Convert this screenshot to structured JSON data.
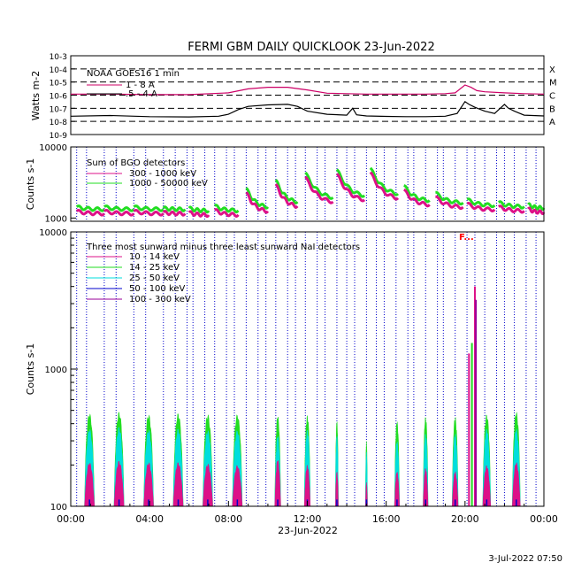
{
  "title": "FERMI GBM DAILY QUICKLOOK  23-Jun-2022",
  "footer_timestamp": "3-Jul-2022 07:50",
  "x_axis": {
    "ticks": [
      "00:00",
      "04:00",
      "08:00",
      "12:00",
      "16:00",
      "20:00",
      "00:00"
    ],
    "label": "23-Jun-2022"
  },
  "colors": {
    "goes_long": "#cc0066",
    "goes_short": "#000000",
    "bgo_low": "#dd1188",
    "bgo_high": "#22dd22",
    "nai_10_14": "#dd1188",
    "nai_14_25": "#22dd22",
    "nai_25_50": "#00dddd",
    "nai_50_100": "#0000cc",
    "nai_100_300": "#990099",
    "saa_lines": "#0000cc",
    "flag": "#ff0000"
  },
  "chart_data": [
    {
      "id": "goes",
      "type": "line",
      "ylabel": "Watts m-2",
      "ylim": [
        1e-09,
        0.001
      ],
      "yscale": "log",
      "ytick_labels": [
        "10-3",
        "10-4",
        "10-5",
        "10-6",
        "10-7",
        "10-8",
        "10-9"
      ],
      "class_levels": [
        "X",
        "M",
        "C",
        "B",
        "A"
      ],
      "legend_title": "NOAA GOES16 1 min",
      "legend_position": "top-left",
      "series": [
        {
          "name": "1 - 8 A",
          "x": [
            0,
            2,
            4,
            6,
            8,
            9,
            10,
            11,
            12,
            13,
            14,
            15,
            16,
            17,
            18,
            19,
            19.5,
            20,
            20.3,
            20.6,
            21,
            22,
            23,
            24
          ],
          "values": [
            1.2e-06,
            1.2e-06,
            1.1e-06,
            1.1e-06,
            1.5e-06,
            3e-06,
            4e-06,
            4e-06,
            2.5e-06,
            1.4e-06,
            1.3e-06,
            1.2e-06,
            1.2e-06,
            1.2e-06,
            1.2e-06,
            1.3e-06,
            1.5e-06,
            6e-06,
            4e-06,
            2.2e-06,
            1.8e-06,
            1.5e-06,
            1.3e-06,
            1.2e-06
          ]
        },
        {
          "name": ".5 - 4 A",
          "x": [
            0,
            2,
            4,
            6,
            7.5,
            8,
            8.5,
            9,
            10,
            11,
            11.5,
            12,
            13,
            14,
            14.3,
            14.5,
            15,
            16,
            17,
            18,
            19,
            19.6,
            20,
            20.2,
            20.5,
            21,
            21.5,
            22,
            22.2,
            22.5,
            23,
            24
          ],
          "values": [
            2.5e-08,
            2.8e-08,
            2.3e-08,
            2.2e-08,
            2.5e-08,
            3.5e-08,
            8e-08,
            1.4e-07,
            1.8e-07,
            2e-07,
            1.4e-07,
            6e-08,
            3.5e-08,
            3e-08,
            1e-07,
            3.2e-08,
            2.6e-08,
            2.4e-08,
            2.3e-08,
            2.3e-08,
            2.5e-08,
            4e-08,
            3.2e-07,
            2e-07,
            1.2e-07,
            6e-08,
            4e-08,
            2e-07,
            1e-07,
            6e-08,
            3e-08,
            2.6e-08
          ]
        }
      ]
    },
    {
      "id": "bgo",
      "type": "line",
      "ylabel": "Counts s-1",
      "ylim": [
        900,
        10000
      ],
      "yscale": "log",
      "ytick_labels": [
        "10000",
        "1000"
      ],
      "legend_title": "Sum of BGO detectors",
      "legend_position": "top-left",
      "series": [
        {
          "name": "300 - 1000 keV",
          "offset_factor": 1.0
        },
        {
          "name": "1000 - 50000 keV",
          "offset_factor": 1.15
        }
      ],
      "orbits": [
        {
          "start": 0.3,
          "end": 1.7,
          "peak": 1250,
          "end_value": 1150
        },
        {
          "start": 1.7,
          "end": 3.2,
          "peak": 1250,
          "end_value": 1150
        },
        {
          "start": 3.2,
          "end": 4.7,
          "peak": 1250,
          "end_value": 1150
        },
        {
          "start": 4.7,
          "end": 5.8,
          "peak": 1200,
          "end_value": 1150
        },
        {
          "start": 6.0,
          "end": 7.0,
          "peak": 1200,
          "end_value": 1100
        },
        {
          "start": 7.3,
          "end": 8.5,
          "peak": 1300,
          "end_value": 1100
        },
        {
          "start": 8.9,
          "end": 10.0,
          "peak": 2300,
          "end_value": 1200
        },
        {
          "start": 10.4,
          "end": 11.5,
          "peak": 3000,
          "end_value": 1400
        },
        {
          "start": 11.9,
          "end": 13.3,
          "peak": 3800,
          "end_value": 1600
        },
        {
          "start": 13.5,
          "end": 14.9,
          "peak": 4200,
          "end_value": 1700
        },
        {
          "start": 15.2,
          "end": 16.6,
          "peak": 4400,
          "end_value": 1800
        },
        {
          "start": 16.9,
          "end": 18.2,
          "peak": 2500,
          "end_value": 1500
        },
        {
          "start": 18.5,
          "end": 19.9,
          "peak": 2000,
          "end_value": 1400
        },
        {
          "start": 20.1,
          "end": 21.5,
          "peak": 1600,
          "end_value": 1300
        },
        {
          "start": 21.7,
          "end": 23.0,
          "peak": 1450,
          "end_value": 1250
        },
        {
          "start": 23.2,
          "end": 24.0,
          "peak": 1350,
          "end_value": 1200
        }
      ]
    },
    {
      "id": "nai",
      "type": "area",
      "ylabel": "Counts s-1",
      "ylim": [
        100,
        10000
      ],
      "yscale": "log",
      "ytick_labels": [
        "10000",
        "1000",
        "100"
      ],
      "legend_title": "Three most sunward minus three least sunward NaI detectors",
      "legend_position": "top-left",
      "series": [
        {
          "name": "10 - 14 keV"
        },
        {
          "name": "14 - 25 keV"
        },
        {
          "name": "25 - 50 keV"
        },
        {
          "name": "50 - 100 keV"
        },
        {
          "name": "100 - 300 keV"
        }
      ],
      "orbit_peaks": [
        {
          "center": 0.95,
          "width": 0.5,
          "peak_14_25": 480,
          "peak_25_50": 370,
          "peak_10_14": 210
        },
        {
          "center": 2.45,
          "width": 0.5,
          "peak_14_25": 490,
          "peak_25_50": 380,
          "peak_10_14": 215
        },
        {
          "center": 3.95,
          "width": 0.5,
          "peak_14_25": 470,
          "peak_25_50": 365,
          "peak_10_14": 210
        },
        {
          "center": 5.45,
          "width": 0.5,
          "peak_14_25": 480,
          "peak_25_50": 370,
          "peak_10_14": 210
        },
        {
          "center": 6.95,
          "width": 0.5,
          "peak_14_25": 470,
          "peak_25_50": 360,
          "peak_10_14": 205
        },
        {
          "center": 8.45,
          "width": 0.5,
          "peak_14_25": 470,
          "peak_25_50": 360,
          "peak_10_14": 200
        },
        {
          "center": 10.5,
          "width": 0.3,
          "peak_14_25": 460,
          "peak_25_50": 330,
          "peak_10_14": 220
        },
        {
          "center": 12.0,
          "width": 0.3,
          "peak_14_25": 460,
          "peak_25_50": 360,
          "peak_10_14": 200
        },
        {
          "center": 13.5,
          "width": 0.15,
          "peak_14_25": 420,
          "peak_25_50": 330,
          "peak_10_14": 180
        },
        {
          "center": 15.0,
          "width": 0.1,
          "peak_14_25": 300,
          "peak_25_50": 250,
          "peak_10_14": 150
        },
        {
          "center": 16.55,
          "width": 0.25,
          "peak_14_25": 420,
          "peak_25_50": 300,
          "peak_10_14": 180
        },
        {
          "center": 18.0,
          "width": 0.25,
          "peak_14_25": 450,
          "peak_25_50": 340,
          "peak_10_14": 190
        },
        {
          "center": 19.5,
          "width": 0.3,
          "peak_14_25": 450,
          "peak_25_50": 340,
          "peak_10_14": 180
        },
        {
          "center": 21.1,
          "width": 0.4,
          "peak_14_25": 470,
          "peak_25_50": 370,
          "peak_10_14": 200
        },
        {
          "center": 22.6,
          "width": 0.4,
          "peak_14_25": 490,
          "peak_25_50": 370,
          "peak_10_14": 210
        }
      ],
      "flare_spikes": [
        {
          "x": 20.2,
          "value": 1300
        },
        {
          "x": 20.35,
          "value": 1550
        },
        {
          "x": 20.5,
          "value": 4000
        },
        {
          "x": 20.55,
          "value": 3200
        }
      ],
      "flag_label": "F..."
    }
  ],
  "saa_dashed_lines_hours": [
    0.3,
    0.8,
    1.7,
    2.3,
    3.2,
    3.8,
    4.7,
    5.3,
    5.9,
    6.2,
    6.8,
    7.3,
    7.9,
    8.3,
    8.9,
    9.5,
    9.9,
    10.4,
    11.0,
    11.4,
    11.9,
    12.5,
    12.9,
    13.5,
    14.0,
    14.4,
    15.0,
    15.5,
    15.9,
    16.5,
    17.1,
    17.4,
    18.0,
    18.6,
    18.9,
    19.5,
    20.1,
    20.5,
    21.0,
    21.6,
    22.0,
    22.5,
    23.1,
    23.6
  ]
}
